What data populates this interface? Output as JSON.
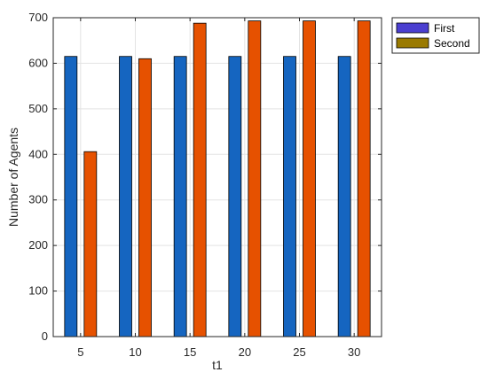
{
  "chart_data": {
    "type": "bar",
    "categories": [
      "5",
      "10",
      "15",
      "20",
      "25",
      "30"
    ],
    "series": [
      {
        "name": "First",
        "values": [
          615,
          615,
          615,
          615,
          615,
          615
        ],
        "bar_color": "#1565c0",
        "legend_color": "#4b3fd0"
      },
      {
        "name": "Second",
        "values": [
          406,
          610,
          688,
          693,
          693,
          693
        ],
        "bar_color": "#e65100",
        "legend_color": "#9a7a00"
      }
    ],
    "xlabel": "t1",
    "ylabel": "Number of Agents",
    "ylim": [
      0,
      700
    ],
    "yticks": [
      0,
      100,
      200,
      300,
      400,
      500,
      600,
      700
    ],
    "grid": true,
    "legend_position": "outside-top-right"
  }
}
